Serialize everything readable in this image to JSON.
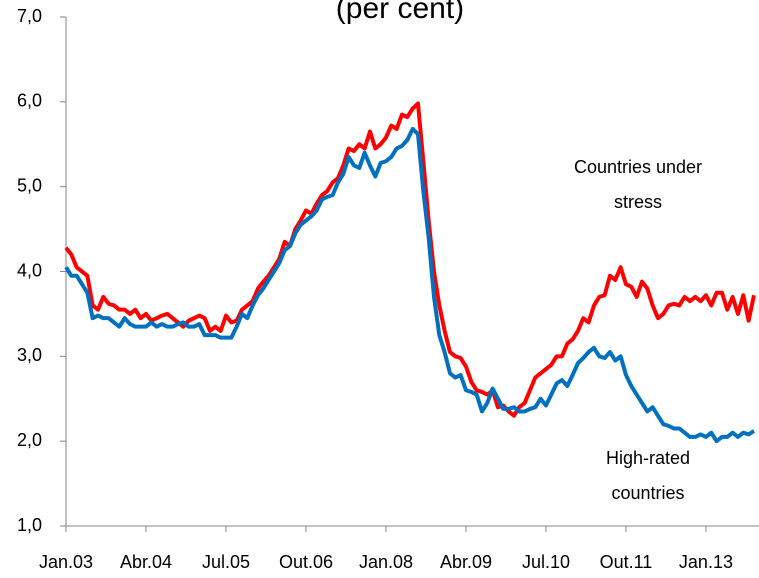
{
  "chart_data": {
    "type": "line",
    "title": "(per cent)",
    "categories": [
      "Jan.03",
      null,
      null,
      null,
      null,
      null,
      null,
      null,
      null,
      null,
      null,
      null,
      null,
      null,
      null,
      "Abr.04",
      null,
      null,
      null,
      null,
      null,
      null,
      null,
      null,
      null,
      null,
      null,
      null,
      null,
      null,
      "Jul.05",
      null,
      null,
      null,
      null,
      null,
      null,
      null,
      null,
      null,
      null,
      null,
      null,
      null,
      null,
      "Out.06",
      null,
      null,
      null,
      null,
      null,
      null,
      null,
      null,
      null,
      null,
      null,
      null,
      null,
      null,
      "Jan.08",
      null,
      null,
      null,
      null,
      null,
      null,
      null,
      null,
      null,
      null,
      null,
      null,
      null,
      null,
      "Abr.09",
      null,
      null,
      null,
      null,
      null,
      null,
      null,
      null,
      null,
      null,
      null,
      null,
      null,
      null,
      "Jul.10",
      null,
      null,
      null,
      null,
      null,
      null,
      null,
      null,
      null,
      null,
      null,
      null,
      null,
      null,
      "Out.11",
      null,
      null,
      null,
      null,
      null,
      null,
      null,
      null,
      null,
      null,
      null,
      null,
      null,
      null,
      "Jan.13",
      null,
      null,
      null,
      null,
      null,
      null,
      null,
      null,
      null
    ],
    "series": [
      {
        "name": "Countries under stress",
        "color": "#ff0000",
        "values": [
          4.28,
          4.2,
          4.05,
          4.0,
          3.95,
          3.6,
          3.55,
          3.7,
          3.62,
          3.6,
          3.55,
          3.55,
          3.5,
          3.55,
          3.45,
          3.5,
          3.42,
          3.45,
          3.48,
          3.5,
          3.45,
          3.4,
          3.35,
          3.42,
          3.45,
          3.48,
          3.45,
          3.3,
          3.35,
          3.3,
          3.48,
          3.4,
          3.42,
          3.55,
          3.6,
          3.65,
          3.8,
          3.88,
          3.95,
          4.05,
          4.15,
          4.35,
          4.3,
          4.5,
          4.6,
          4.72,
          4.68,
          4.8,
          4.9,
          4.95,
          5.05,
          5.1,
          5.25,
          5.45,
          5.42,
          5.5,
          5.45,
          5.65,
          5.45,
          5.5,
          5.58,
          5.72,
          5.68,
          5.85,
          5.82,
          5.92,
          5.98,
          5.3,
          4.6,
          4.0,
          3.6,
          3.3,
          3.05,
          3.0,
          2.98,
          2.88,
          2.7,
          2.6,
          2.58,
          2.55,
          2.6,
          2.4,
          2.42,
          2.35,
          2.3,
          2.4,
          2.45,
          2.6,
          2.75,
          2.8,
          2.85,
          2.9,
          3.0,
          3.0,
          3.15,
          3.2,
          3.3,
          3.45,
          3.4,
          3.6,
          3.7,
          3.72,
          3.95,
          3.9,
          4.05,
          3.85,
          3.82,
          3.7,
          3.88,
          3.8,
          3.6,
          3.45,
          3.5,
          3.6,
          3.62,
          3.6,
          3.7,
          3.65,
          3.7,
          3.65,
          3.72,
          3.6,
          3.75,
          3.75,
          3.55,
          3.7,
          3.5,
          3.72,
          3.42,
          3.72
        ]
      },
      {
        "name": "High-rated countries",
        "color": "#0070c0",
        "values": [
          4.05,
          3.95,
          3.95,
          3.85,
          3.75,
          3.45,
          3.48,
          3.45,
          3.45,
          3.4,
          3.35,
          3.45,
          3.38,
          3.35,
          3.35,
          3.35,
          3.4,
          3.35,
          3.38,
          3.35,
          3.35,
          3.38,
          3.4,
          3.35,
          3.35,
          3.38,
          3.25,
          3.25,
          3.25,
          3.22,
          3.22,
          3.22,
          3.35,
          3.5,
          3.45,
          3.6,
          3.72,
          3.8,
          3.9,
          4.0,
          4.1,
          4.25,
          4.3,
          4.45,
          4.55,
          4.6,
          4.65,
          4.72,
          4.85,
          4.88,
          4.9,
          5.05,
          5.15,
          5.35,
          5.25,
          5.22,
          5.4,
          5.25,
          5.12,
          5.28,
          5.3,
          5.35,
          5.45,
          5.48,
          5.55,
          5.68,
          5.62,
          4.95,
          4.4,
          3.7,
          3.25,
          3.05,
          2.8,
          2.75,
          2.78,
          2.6,
          2.58,
          2.55,
          2.35,
          2.45,
          2.62,
          2.5,
          2.38,
          2.38,
          2.4,
          2.35,
          2.35,
          2.38,
          2.4,
          2.5,
          2.42,
          2.55,
          2.68,
          2.72,
          2.65,
          2.78,
          2.92,
          2.98,
          3.05,
          3.1,
          3.0,
          2.98,
          3.05,
          2.95,
          3.0,
          2.78,
          2.65,
          2.55,
          2.45,
          2.35,
          2.4,
          2.3,
          2.2,
          2.18,
          2.15,
          2.15,
          2.1,
          2.05,
          2.05,
          2.08,
          2.05,
          2.1,
          2.0,
          2.05,
          2.05,
          2.1,
          2.05,
          2.1,
          2.08,
          2.12
        ]
      }
    ],
    "annotations": [
      {
        "lines": [
          "Countries under",
          "stress"
        ]
      },
      {
        "lines": [
          "High-rated",
          "countries"
        ]
      }
    ],
    "ylim": [
      1,
      7
    ],
    "yticks": [
      {
        "value": 1,
        "label": "1,0"
      },
      {
        "value": 2,
        "label": "2,0"
      },
      {
        "value": 3,
        "label": "3,0"
      },
      {
        "value": 4,
        "label": "4,0"
      },
      {
        "value": 5,
        "label": "5,0"
      },
      {
        "value": 6,
        "label": "6,0"
      },
      {
        "value": 7,
        "label": "7,0"
      }
    ]
  }
}
